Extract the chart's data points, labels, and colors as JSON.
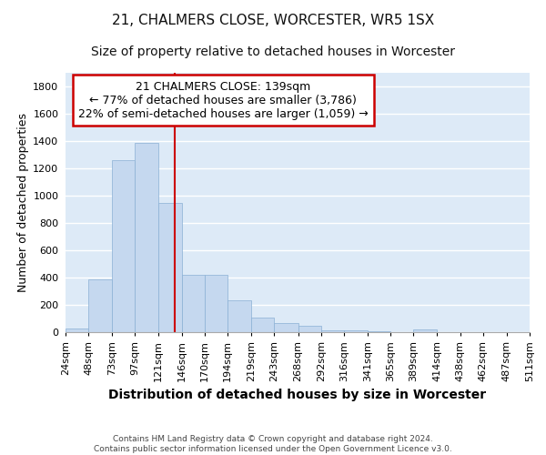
{
  "title1": "21, CHALMERS CLOSE, WORCESTER, WR5 1SX",
  "title2": "Size of property relative to detached houses in Worcester",
  "xlabel": "Distribution of detached houses by size in Worcester",
  "ylabel": "Number of detached properties",
  "footnote": "Contains HM Land Registry data © Crown copyright and database right 2024.\nContains public sector information licensed under the Open Government Licence v3.0.",
  "bar_left_edges": [
    24,
    48,
    73,
    97,
    121,
    146,
    170,
    194,
    219,
    243,
    268,
    292,
    316,
    341,
    365,
    389,
    414,
    438,
    462,
    487
  ],
  "bar_widths": [
    24,
    25,
    24,
    24,
    25,
    24,
    24,
    25,
    24,
    25,
    24,
    24,
    25,
    24,
    24,
    25,
    24,
    24,
    25,
    24
  ],
  "bar_heights": [
    25,
    390,
    1260,
    1390,
    950,
    420,
    420,
    235,
    110,
    70,
    50,
    15,
    15,
    5,
    3,
    18,
    0,
    0,
    0,
    0
  ],
  "bar_color": "#c5d8ef",
  "bar_edge_color": "#8ab0d4",
  "property_size": 139,
  "vline_color": "#cc0000",
  "annotation_line1": "21 CHALMERS CLOSE: 139sqm",
  "annotation_line2": "← 77% of detached houses are smaller (3,786)",
  "annotation_line3": "22% of semi-detached houses are larger (1,059) →",
  "annotation_box_edgecolor": "#cc0000",
  "ylim": [
    0,
    1900
  ],
  "yticks": [
    0,
    200,
    400,
    600,
    800,
    1000,
    1200,
    1400,
    1600,
    1800
  ],
  "x_tick_positions": [
    24,
    48,
    73,
    97,
    121,
    146,
    170,
    194,
    219,
    243,
    268,
    292,
    316,
    341,
    365,
    389,
    414,
    438,
    462,
    487,
    511
  ],
  "x_tick_labels": [
    "24sqm",
    "48sqm",
    "73sqm",
    "97sqm",
    "121sqm",
    "146sqm",
    "170sqm",
    "194sqm",
    "219sqm",
    "243sqm",
    "268sqm",
    "292sqm",
    "316sqm",
    "341sqm",
    "365sqm",
    "389sqm",
    "414sqm",
    "438sqm",
    "462sqm",
    "487sqm",
    "511sqm"
  ],
  "xlim": [
    24,
    511
  ],
  "background_color": "#ddeaf7",
  "grid_color": "#ffffff",
  "title1_fontsize": 11,
  "title2_fontsize": 10,
  "xlabel_fontsize": 10,
  "ylabel_fontsize": 9,
  "tick_fontsize": 8,
  "annotation_fontsize": 9
}
